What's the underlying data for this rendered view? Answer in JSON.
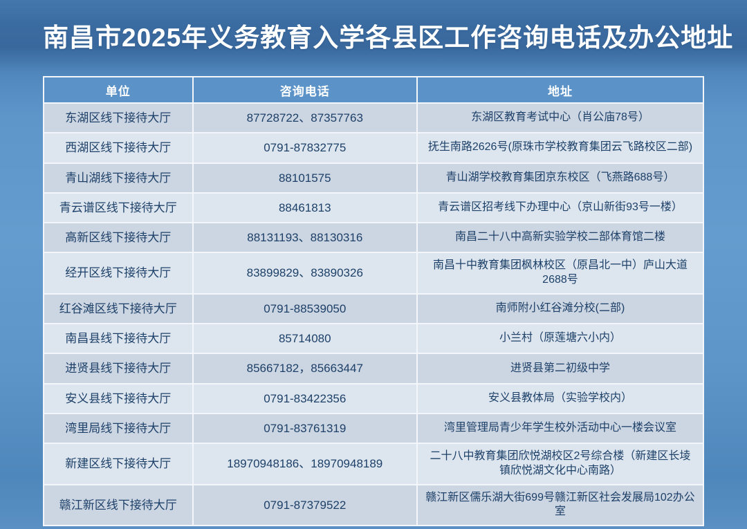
{
  "page": {
    "title": "南昌市2025年义务教育入学各县区工作咨询电话及办公地址",
    "colors": {
      "background_top": "#3a6ba0",
      "background_main": "#5e95c9",
      "header_bg": "#5b93c9",
      "row_dark": "#ccd5e2",
      "row_light": "#dde6ef",
      "cell_text": "#1d4068",
      "title_text": "#ffffff",
      "grid_line": "#f3f7fb"
    }
  },
  "table": {
    "columns": [
      "单位",
      "咨询电话",
      "地址"
    ],
    "rows": [
      {
        "unit": "东湖区线下接待大厅",
        "phone": "87728722、87357763",
        "address": "东湖区教育考试中心（肖公庙78号）"
      },
      {
        "unit": "西湖区线下接待大厅",
        "phone": "0791-87832775",
        "address": "抚生南路2626号(原珠市学校教育集团云飞路校区二部)"
      },
      {
        "unit": "青山湖线下接待大厅",
        "phone": "88101575",
        "address": "青山湖学校教育集团京东校区（飞燕路688号）"
      },
      {
        "unit": "青云谱区线下接待大厅",
        "phone": "88461813",
        "address": "青云谱区招考线下办理中心（京山新街93号一楼）"
      },
      {
        "unit": "高新区线下接待大厅",
        "phone": "88131193、88130316",
        "address": "南昌二十八中高新实验学校二部体育馆二楼"
      },
      {
        "unit": "经开区线下接待大厅",
        "phone": "83899829、83890326",
        "address": "南昌十中教育集团枫林校区（原昌北一中）庐山大道2688号"
      },
      {
        "unit": "红谷滩区线下接待大厅",
        "phone": "0791-88539050",
        "address": "南师附小红谷滩分校(二部)"
      },
      {
        "unit": "南昌县线下接待大厅",
        "phone": "85714080",
        "address": "小兰村（原莲塘六小内）"
      },
      {
        "unit": "进贤县线下接待大厅",
        "phone": "85667182，85663447",
        "address": "进贤县第二初级中学"
      },
      {
        "unit": "安义县线下接待大厅",
        "phone": "0791-83422356",
        "address": "安义县教体局（实验学校内）"
      },
      {
        "unit": "湾里局线下接待大厅",
        "phone": "0791-83761319",
        "address": "湾里管理局青少年学生校外活动中心一楼会议室"
      },
      {
        "unit": "新建区线下接待大厅",
        "phone": "18970948186、18970948189",
        "address": "二十八中教育集团欣悦湖校区2号综合楼（新建区长堎镇欣悦湖文化中心南路）"
      },
      {
        "unit": "赣江新区线下接待大厅",
        "phone": "0791-87379522",
        "address": "赣江新区儒乐湖大街699号赣江新区社会发展局102办公室"
      }
    ]
  }
}
